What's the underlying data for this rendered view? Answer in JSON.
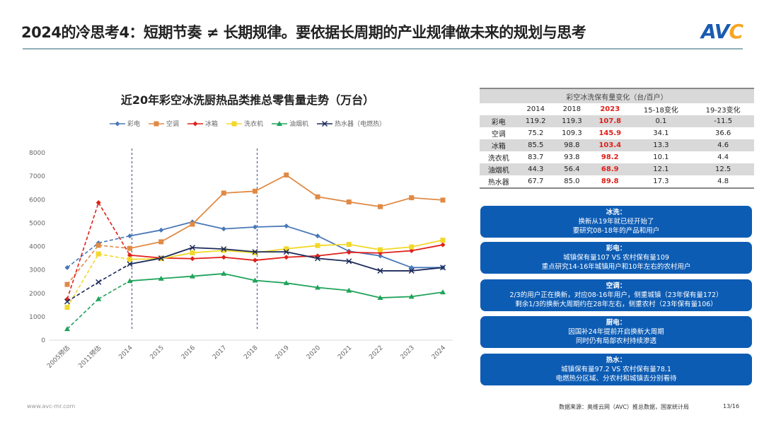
{
  "header": {
    "title": "2024的冷思考4：短期节奏 ≠ 长期规律。要依据长周期的产业规律做未来的规划与思考",
    "logo": "AVC"
  },
  "chart_data": {
    "type": "line",
    "title": "近20年彩空冰洗厨热品类推总零售量走势（万台）",
    "categories": [
      "2005预估",
      "2011预估",
      "2014",
      "2015",
      "2016",
      "2017",
      "2018",
      "2019",
      "2020",
      "2021",
      "2022",
      "2023",
      "2024"
    ],
    "ylim": [
      0,
      8000
    ],
    "yticks": [
      "0",
      "1000",
      "2000",
      "3000",
      "4000",
      "5000",
      "6000",
      "7000",
      "8000"
    ],
    "legend_position": "top",
    "reference_lines_at": [
      "2014",
      "2018"
    ],
    "series": [
      {
        "name": "彩电",
        "color": "#4a78b8",
        "marker": "diamond",
        "values": [
          3100,
          4150,
          4450,
          4700,
          5050,
          4750,
          4830,
          4870,
          4450,
          3800,
          3600,
          3100,
          3100
        ]
      },
      {
        "name": "空调",
        "color": "#e08a45",
        "marker": "square",
        "values": [
          2380,
          4050,
          3920,
          4200,
          4950,
          6280,
          6360,
          7050,
          6120,
          5900,
          5700,
          6080,
          5980
        ]
      },
      {
        "name": "冰箱",
        "color": "#e0201a",
        "marker": "diamond",
        "values": [
          1750,
          5870,
          3630,
          3510,
          3480,
          3540,
          3410,
          3540,
          3600,
          3750,
          3720,
          3820,
          4070
        ]
      },
      {
        "name": "洗衣机",
        "color": "#f2d82a",
        "marker": "square",
        "values": [
          1400,
          3680,
          3450,
          3480,
          3730,
          3830,
          3730,
          3900,
          4040,
          4090,
          3860,
          3980,
          4270
        ]
      },
      {
        "name": "油烟机",
        "color": "#1fa35a",
        "marker": "triangle",
        "values": [
          480,
          1760,
          2530,
          2630,
          2730,
          2840,
          2550,
          2440,
          2250,
          2120,
          1810,
          1860,
          2050
        ]
      },
      {
        "name": "热水器（电燃热）",
        "color": "#1c2a5a",
        "marker": "x",
        "values": [
          1650,
          2480,
          3250,
          3500,
          3950,
          3890,
          3770,
          3770,
          3490,
          3370,
          2960,
          2960,
          3100
        ]
      }
    ]
  },
  "table": {
    "caption": "彩空冰洗保有量变化（台/百户）",
    "columns": [
      "",
      "2014",
      "2018",
      "2023",
      "15-18变化",
      "19-23变化"
    ],
    "rows": [
      [
        "彩电",
        "119.2",
        "119.3",
        "107.8",
        "0.1",
        "-11.5"
      ],
      [
        "空调",
        "75.2",
        "109.3",
        "145.9",
        "34.1",
        "36.6"
      ],
      [
        "冰箱",
        "85.5",
        "98.8",
        "103.4",
        "13.3",
        "4.6"
      ],
      [
        "洗衣机",
        "83.7",
        "93.8",
        "98.2",
        "10.1",
        "4.4"
      ],
      [
        "油烟机",
        "44.3",
        "56.4",
        "68.9",
        "12.1",
        "12.5"
      ],
      [
        "热水器",
        "67.7",
        "85.0",
        "89.8",
        "17.3",
        "4.8"
      ]
    ]
  },
  "notes": [
    {
      "head": "冰洗：",
      "lines": [
        "换新从19年就已经开始了",
        "要研究08-18年的产品和用户"
      ]
    },
    {
      "head": "彩电：",
      "lines": [
        "城镇保有量107   VS   农村保有量109",
        "重点研究14-16年城镇用户和10年左右的农村用户"
      ]
    },
    {
      "head": "空调：",
      "lines": [
        "2/3的用户正在换新，对应08-16年用户，侧重城镇（23年保有量172）",
        "剩余1/3的换新大周期约在28年左右，侧重农村（23年保有量106）"
      ]
    },
    {
      "head": "厨电：",
      "lines": [
        "因国补24年提前开启换新大周期",
        "同时仍有局部农村持续渗透"
      ]
    },
    {
      "head": "热水：",
      "lines": [
        "城镇保有量97.2   VS   农村保有量78.1",
        "电燃热分区域、分农村和城镇去分别看待"
      ]
    }
  ],
  "footer": {
    "url": "www.avc-mr.com",
    "source": "数据来源：奥维云网（AVC）推总数据，国家统计局",
    "page": "13/16"
  }
}
